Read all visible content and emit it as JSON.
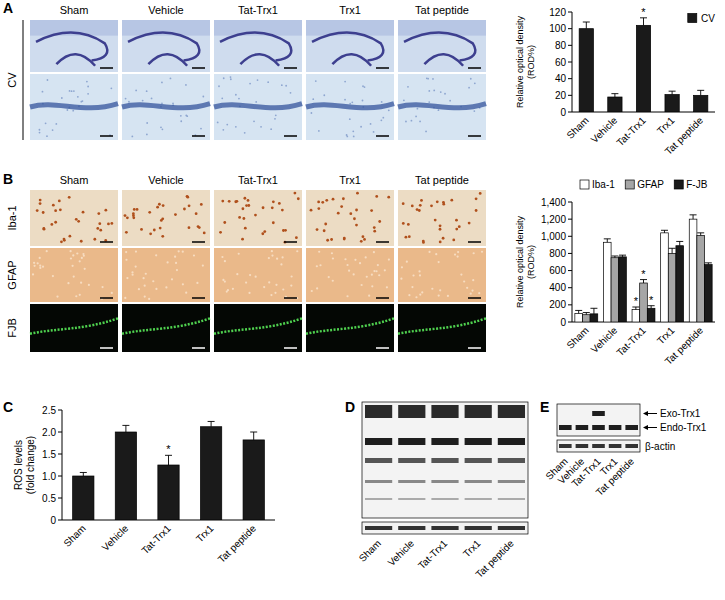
{
  "chart_data": [
    {
      "type": "bar",
      "y_label": "Relative optical density (ROD%)",
      "categories": [
        "Sham",
        "Vehicle",
        "Tat-Trx1",
        "Trx1",
        "Tat peptide"
      ],
      "series": [
        {
          "name": "CV",
          "color": "#1a1a1a",
          "values": [
            100,
            18,
            104,
            21,
            20
          ],
          "errors": [
            8,
            4,
            9,
            4,
            6
          ]
        }
      ],
      "ylim": [
        0,
        120
      ],
      "yticks": [
        0,
        20,
        40,
        60,
        80,
        100,
        120
      ],
      "grid": false,
      "legend": "top-right",
      "annotations": [
        {
          "category": "Tat-Trx1",
          "text": "*"
        }
      ]
    },
    {
      "type": "bar",
      "y_label": "Relative optical density (ROD%)",
      "categories": [
        "Sham",
        "Vehicle",
        "Tat-Trx1",
        "Trx1",
        "Tat peptide"
      ],
      "series": [
        {
          "name": "Iba-1",
          "color": "#ffffff",
          "values": [
            100,
            930,
            145,
            1040,
            1200
          ],
          "errors": [
            35,
            40,
            30,
            30,
            50
          ]
        },
        {
          "name": "GFAP",
          "color": "#a6a6a6",
          "values": [
            85,
            750,
            455,
            800,
            1010
          ],
          "errors": [
            25,
            20,
            40,
            60,
            30
          ]
        },
        {
          "name": "F-JB",
          "color": "#1a1a1a",
          "values": [
            95,
            760,
            160,
            890,
            670
          ],
          "errors": [
            65,
            20,
            30,
            50,
            20
          ]
        }
      ],
      "ylim": [
        0,
        1400
      ],
      "yticks": [
        0,
        200,
        400,
        600,
        800,
        {
          "value": 1000,
          "label": "1,000"
        },
        {
          "value": 1200,
          "label": "1,200"
        },
        {
          "value": 1400,
          "label": "1,400"
        }
      ],
      "grid": false,
      "legend": "top",
      "annotations": [
        {
          "category": "Tat-Trx1",
          "series": "Iba-1",
          "text": "*"
        },
        {
          "category": "Tat-Trx1",
          "series": "GFAP",
          "text": "*"
        },
        {
          "category": "Tat-Trx1",
          "series": "F-JB",
          "text": "*"
        }
      ]
    },
    {
      "type": "bar",
      "panel_label": "C",
      "y_label": "ROS levels (fold change)",
      "categories": [
        "Sham",
        "Vehicle",
        "Tat-Trx1",
        "Trx1",
        "Tat peptide"
      ],
      "values": [
        1.0,
        2.0,
        1.25,
        2.12,
        1.82
      ],
      "errors": [
        0.08,
        0.15,
        0.22,
        0.12,
        0.18
      ],
      "color": "#1a1a1a",
      "ylim": [
        0,
        2.5
      ],
      "yticks": [
        0,
        0.5,
        {
          "value": 1,
          "label": "1.0"
        },
        1.5,
        {
          "value": 2,
          "label": "2.0"
        },
        2.5
      ],
      "grid": false,
      "annotations": [
        {
          "category": "Tat-Trx1",
          "text": "*"
        }
      ]
    }
  ],
  "micrographs": [
    {
      "panel_label": "A",
      "columns": [
        "Sham",
        "Vehicle",
        "Tat-Trx1",
        "Trx1",
        "Tat peptide"
      ],
      "rows": [
        "CV"
      ]
    },
    {
      "panel_label": "B",
      "columns": [
        "Sham",
        "Vehicle",
        "Tat-Trx1",
        "Trx1",
        "Tat peptide"
      ],
      "rows": [
        "Iba-1",
        "GFAP",
        "FJB"
      ]
    }
  ],
  "blots": [
    {
      "panel_label": "D",
      "lanes": [
        "Sham",
        "Vehicle",
        "Tat-Trx1",
        "Trx1",
        "Tat peptide"
      ]
    },
    {
      "panel_label": "E",
      "lanes": [
        "Sham",
        "Vehicle",
        "Tat-Trx1",
        "Trx1",
        "Tat peptide"
      ],
      "bands": [
        {
          "label": "Exo-Trx1",
          "lanes": [
            "Tat-Trx1"
          ]
        },
        {
          "label": "Endo-Trx1",
          "lanes": [
            "Sham",
            "Vehicle",
            "Tat-Trx1",
            "Trx1",
            "Tat peptide"
          ]
        }
      ],
      "loading_control": "β-actin"
    }
  ]
}
